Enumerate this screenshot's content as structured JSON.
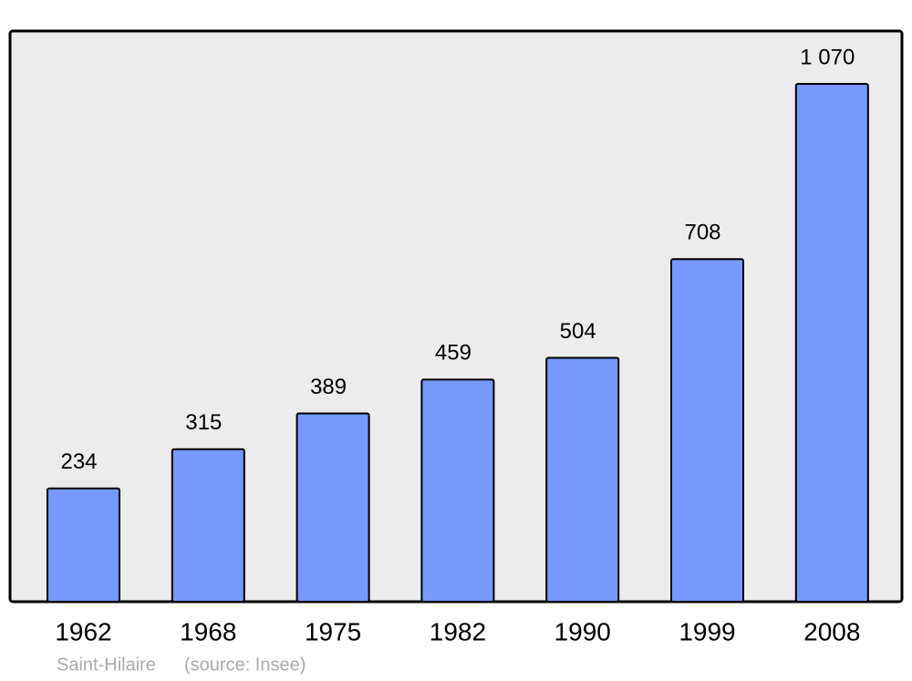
{
  "chart_data": {
    "type": "bar",
    "title": "Saint-Hilaire",
    "source": "(source: Insee)",
    "categories": [
      "1962",
      "1968",
      "1975",
      "1982",
      "1990",
      "1999",
      "2008"
    ],
    "values": [
      234,
      315,
      389,
      459,
      504,
      708,
      1070
    ],
    "value_labels": [
      "234",
      "315",
      "389",
      "459",
      "504",
      "708",
      "1 070"
    ],
    "color": "#7799ff"
  }
}
